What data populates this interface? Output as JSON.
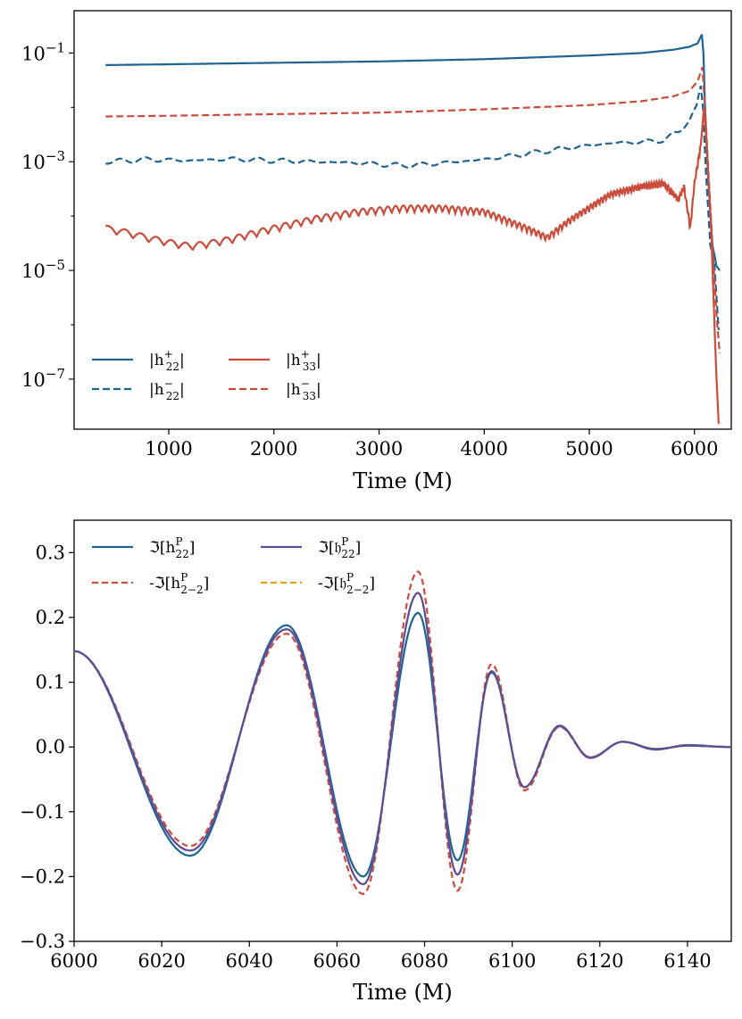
{
  "colors": {
    "blue": "#1f6391",
    "red": "#cc4c3c",
    "purple": "#5e4c98",
    "gold": "#e8a519"
  },
  "chart_data": [
    {
      "type": "line",
      "title": "",
      "xlabel": "Time (M)",
      "ylabel": "",
      "yscale": "log",
      "xlim": [
        100,
        6350
      ],
      "ylim": [
        1.2e-08,
        0.6
      ],
      "xticks": [
        1000,
        2000,
        3000,
        4000,
        5000,
        6000
      ],
      "xtick_labels": [
        "1000",
        "2000",
        "3000",
        "4000",
        "5000",
        "6000"
      ],
      "ytick_labels": [
        {
          "base": "10",
          "exp": "−1",
          "value": 0.1
        },
        {
          "base": "10",
          "exp": "−3",
          "value": 0.001
        },
        {
          "base": "10",
          "exp": "−5",
          "value": 1e-05
        },
        {
          "base": "10",
          "exp": "−7",
          "value": 1e-07
        }
      ],
      "legend": "lower-left",
      "series": [
        {
          "name": "|h22+|",
          "label": "|h",
          "sup": "+",
          "sub": "22",
          "color": "blue",
          "dash": false,
          "x": [
            400,
            1000,
            2000,
            3000,
            4000,
            5000,
            5500,
            5800,
            5950,
            6030,
            6070,
            6085,
            6100,
            6130,
            6170,
            6210,
            6240
          ],
          "y": [
            0.06,
            0.062,
            0.066,
            0.07,
            0.077,
            0.09,
            0.1,
            0.115,
            0.13,
            0.15,
            0.22,
            0.1,
            0.01,
            0.0005,
            3e-05,
            1.2e-05,
            1e-05
          ]
        },
        {
          "name": "|h22-|",
          "label": "|h",
          "sup": "−",
          "sub": "22",
          "color": "blue",
          "dash": true,
          "x": [
            400,
            800,
            1200,
            1600,
            2000,
            2400,
            2800,
            3000,
            3200,
            3400,
            3600,
            4000,
            4400,
            4800,
            5200,
            5500,
            5700,
            5850,
            5950,
            6020,
            6060,
            6080,
            6110,
            6150,
            6190,
            6230
          ],
          "y": [
            0.001,
            0.0011,
            0.00105,
            0.00112,
            0.00105,
            0.001,
            0.00095,
            0.0009,
            0.00085,
            0.00088,
            0.00095,
            0.0011,
            0.0014,
            0.0018,
            0.0022,
            0.0023,
            0.0025,
            0.0035,
            0.006,
            0.01,
            0.025,
            0.01,
            0.0006,
            3e-05,
            1.2e-05,
            8e-07
          ]
        },
        {
          "name": "|h33+|",
          "label": "|h",
          "sup": "+",
          "sub": "33",
          "color": "red",
          "dash": false,
          "x": [
            400,
            600,
            800,
            1000,
            1200,
            1400,
            1600,
            1800,
            2000,
            2400,
            2800,
            3200,
            3600,
            4000,
            4400,
            4600,
            4800,
            5200,
            5500,
            5700,
            5850,
            5900,
            5960,
            6000,
            6060,
            6090,
            6120,
            6160,
            6190,
            6210,
            6230
          ],
          "y": [
            6e-05,
            5e-05,
            4e-05,
            3.3e-05,
            2.8e-05,
            3.2e-05,
            3.8e-05,
            4.8e-05,
            6e-05,
            9e-05,
            0.00012,
            0.00014,
            0.00014,
            0.00012,
            6e-05,
            4e-05,
            8e-05,
            0.00025,
            0.00035,
            0.0004,
            0.0002,
            0.00035,
            6e-05,
            0.0004,
            0.002,
            0.01,
            0.0015,
            5e-05,
            1e-06,
            1e-07,
            1.5e-08
          ]
        },
        {
          "name": "|h33-|",
          "label": "|h",
          "sup": "−",
          "sub": "33",
          "color": "red",
          "dash": true,
          "x": [
            400,
            1000,
            2000,
            3000,
            4000,
            5000,
            5500,
            5800,
            5950,
            6030,
            6075,
            6100,
            6130,
            6170,
            6210,
            6240
          ],
          "y": [
            0.0068,
            0.007,
            0.0075,
            0.008,
            0.0092,
            0.011,
            0.013,
            0.016,
            0.02,
            0.03,
            0.055,
            0.01,
            0.0008,
            3e-05,
            1.5e-06,
            3e-07
          ]
        }
      ]
    },
    {
      "type": "line",
      "title": "",
      "xlabel": "Time (M)",
      "ylabel": "",
      "xlim": [
        6000,
        6150
      ],
      "ylim": [
        -0.3,
        0.35
      ],
      "xticks": [
        6000,
        6020,
        6040,
        6060,
        6080,
        6100,
        6120,
        6140
      ],
      "xtick_labels": [
        "6000",
        "6020",
        "6040",
        "6060",
        "6080",
        "6100",
        "6120",
        "6140"
      ],
      "yticks": [
        -0.3,
        -0.2,
        -0.1,
        0.0,
        0.1,
        0.2,
        0.3
      ],
      "ytick_labels": [
        "−0.3",
        "−0.2",
        "−0.1",
        "0.0",
        "0.1",
        "0.2",
        "0.3"
      ],
      "legend": "top-left",
      "extrema_times": [
        6000,
        6026.5,
        6048.5,
        6066,
        6078.5,
        6087.5,
        6095.3,
        6102.8,
        6110.8,
        6117.8,
        6125.2,
        6132.8,
        6140,
        6150
      ],
      "series": [
        {
          "name": "Im[h22P]",
          "label_pre": "ℑ[h",
          "sup": "P",
          "sub": "22",
          "label_post": "]",
          "color": "blue",
          "dash": false,
          "peaks": [
            0.148,
            -0.168,
            0.188,
            -0.2,
            0.207,
            -0.175,
            0.115,
            -0.062,
            0.033,
            -0.017,
            0.008,
            -0.004,
            0.003,
            0.0
          ]
        },
        {
          "name": "Im[frak-h22P]",
          "label_pre": "ℑ[𝔥",
          "sup": "P",
          "sub": "22",
          "label_post": "]",
          "color": "purple",
          "dash": false,
          "peaks": [
            0.148,
            -0.16,
            0.182,
            -0.212,
            0.238,
            -0.197,
            0.117,
            -0.062,
            0.032,
            -0.016,
            0.008,
            -0.003,
            0.002,
            0.0
          ]
        },
        {
          "name": "-Im[h2-2P]",
          "label_pre": "-ℑ[h",
          "sup": "P",
          "sub": "2−2",
          "label_post": "]",
          "color": "red",
          "dash": true,
          "peaks": [
            0.148,
            -0.153,
            0.175,
            -0.227,
            0.271,
            -0.222,
            0.128,
            -0.067,
            0.031,
            -0.017,
            0.008,
            -0.003,
            0.002,
            0.0
          ]
        },
        {
          "name": "-Im[frak-h2-2P]",
          "label_pre": "-ℑ[𝔥",
          "sup": "P",
          "sub": "2−2",
          "label_post": "]",
          "color": "gold",
          "dash": true,
          "peaks": [
            0.148,
            -0.16,
            0.182,
            -0.212,
            0.238,
            -0.197,
            0.117,
            -0.062,
            0.032,
            -0.016,
            0.008,
            -0.003,
            0.002,
            0.0
          ]
        }
      ]
    }
  ]
}
